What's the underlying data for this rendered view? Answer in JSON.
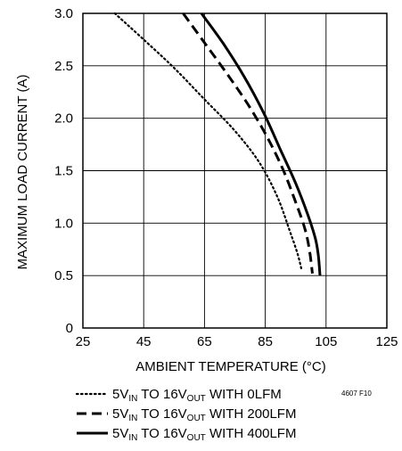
{
  "chart_data": {
    "type": "line",
    "xlabel": "AMBIENT TEMPERATURE (°C)",
    "ylabel": "MAXIMUM LOAD CURRENT (A)",
    "xlim": [
      25,
      125
    ],
    "ylim": [
      0,
      3.0
    ],
    "xticks": [
      25,
      45,
      65,
      85,
      105,
      125
    ],
    "yticks": [
      0,
      0.5,
      1.0,
      1.5,
      2.0,
      2.5,
      3.0
    ],
    "xtick_labels": [
      "25",
      "45",
      "65",
      "85",
      "105",
      "125"
    ],
    "ytick_labels": [
      "0",
      "0.5",
      "1.0",
      "1.5",
      "2.0",
      "2.5",
      "3.0"
    ],
    "grid": true,
    "legend_placement": "below",
    "figure_id": "4607 F10",
    "series": [
      {
        "style": "dotted",
        "legend": {
          "pre": "5V",
          "sub1": "IN",
          "mid": " TO 16V",
          "sub2": "OUT",
          "post": " WITH 0LFM"
        },
        "x": [
          35.5,
          45,
          55,
          65,
          75,
          83,
          89,
          93,
          95.5,
          97
        ],
        "y": [
          3.0,
          2.75,
          2.48,
          2.18,
          1.88,
          1.58,
          1.25,
          0.93,
          0.72,
          0.55
        ]
      },
      {
        "style": "dashed",
        "legend": {
          "pre": "5V",
          "sub1": "IN",
          "mid": " TO 16V",
          "sub2": "OUT",
          "post": " WITH 200LFM"
        },
        "x": [
          58,
          65,
          73,
          80,
          86,
          91,
          95,
          98,
          99.5,
          100.5
        ],
        "y": [
          3.0,
          2.72,
          2.4,
          2.1,
          1.8,
          1.5,
          1.2,
          0.95,
          0.75,
          0.52
        ]
      },
      {
        "style": "solid",
        "legend": {
          "pre": "5V",
          "sub1": "IN",
          "mid": " TO 16V",
          "sub2": "OUT",
          "post": " WITH 400LFM"
        },
        "x": [
          64,
          71,
          78,
          84.5,
          90,
          95,
          99,
          101.5,
          102.5,
          103
        ],
        "y": [
          3.0,
          2.72,
          2.4,
          2.05,
          1.7,
          1.38,
          1.08,
          0.85,
          0.68,
          0.5
        ]
      }
    ]
  }
}
